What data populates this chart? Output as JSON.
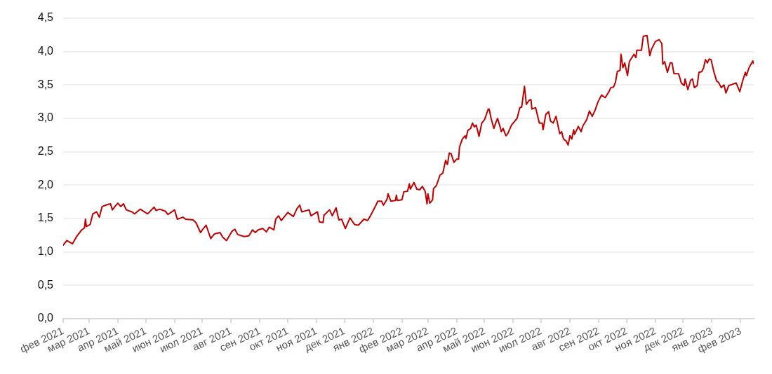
{
  "chart_data": {
    "type": "line",
    "x": [
      "2021-02-01",
      "2021-02-05",
      "2021-02-11",
      "2021-02-15",
      "2021-02-21",
      "2021-02-24",
      "2021-02-25",
      "2021-02-26",
      "2021-03-02",
      "2021-03-05",
      "2021-03-09",
      "2021-03-12",
      "2021-03-15",
      "2021-03-21",
      "2021-03-24",
      "2021-03-26",
      "2021-03-30",
      "2021-04-01",
      "2021-04-04",
      "2021-04-07",
      "2021-04-10",
      "2021-04-16",
      "2021-04-19",
      "2021-04-25",
      "2021-05-03",
      "2021-05-10",
      "2021-05-12",
      "2021-05-16",
      "2021-05-22",
      "2021-05-25",
      "2021-06-01",
      "2021-06-04",
      "2021-06-10",
      "2021-06-13",
      "2021-06-21",
      "2021-06-24",
      "2021-06-29",
      "2021-07-02",
      "2021-07-05",
      "2021-07-08",
      "2021-07-10",
      "2021-07-14",
      "2021-07-20",
      "2021-07-23",
      "2021-07-27",
      "2021-08-02",
      "2021-08-05",
      "2021-08-08",
      "2021-08-15",
      "2021-08-20",
      "2021-08-24",
      "2021-08-27",
      "2021-08-30",
      "2021-09-04",
      "2021-09-08",
      "2021-09-11",
      "2021-09-16",
      "2021-09-18",
      "2021-09-21",
      "2021-09-24",
      "2021-10-01",
      "2021-10-07",
      "2021-10-11",
      "2021-10-14",
      "2021-10-16",
      "2021-10-24",
      "2021-10-26",
      "2021-11-02",
      "2021-11-04",
      "2021-11-08",
      "2021-11-09",
      "2021-11-15",
      "2021-11-18",
      "2021-11-22",
      "2021-11-25",
      "2021-11-28",
      "2021-12-02",
      "2021-12-07",
      "2021-12-12",
      "2021-12-16",
      "2021-12-22",
      "2021-12-26",
      "2021-12-29",
      "2022-01-04",
      "2022-01-06",
      "2022-01-10",
      "2022-01-12",
      "2022-01-16",
      "2022-01-17",
      "2022-01-20",
      "2022-01-25",
      "2022-01-26",
      "2022-01-27",
      "2022-02-01",
      "2022-02-03",
      "2022-02-07",
      "2022-02-09",
      "2022-02-10",
      "2022-02-14",
      "2022-02-17",
      "2022-02-20",
      "2022-02-23",
      "2022-02-26",
      "2022-02-28",
      "2022-03-01",
      "2022-03-03",
      "2022-03-06",
      "2022-03-07",
      "2022-03-10",
      "2022-03-14",
      "2022-03-17",
      "2022-03-20",
      "2022-03-22",
      "2022-03-24",
      "2022-03-26",
      "2022-03-29",
      "2022-04-01",
      "2022-04-03",
      "2022-04-04",
      "2022-04-07",
      "2022-04-10",
      "2022-04-11",
      "2022-04-13",
      "2022-04-16",
      "2022-04-18",
      "2022-04-20",
      "2022-04-22",
      "2022-04-25",
      "2022-04-28",
      "2022-05-01",
      "2022-05-05",
      "2022-05-06",
      "2022-05-08",
      "2022-05-11",
      "2022-05-13",
      "2022-05-15",
      "2022-05-18",
      "2022-05-19",
      "2022-05-21",
      "2022-05-24",
      "2022-05-26",
      "2022-05-30",
      "2022-06-02",
      "2022-06-05",
      "2022-06-08",
      "2022-06-10",
      "2022-06-13",
      "2022-06-15",
      "2022-06-18",
      "2022-06-20",
      "2022-06-21",
      "2022-06-25",
      "2022-06-29",
      "2022-07-02",
      "2022-07-03",
      "2022-07-06",
      "2022-07-09",
      "2022-07-11",
      "2022-07-14",
      "2022-07-17",
      "2022-07-21",
      "2022-07-23",
      "2022-07-25",
      "2022-07-28",
      "2022-07-30",
      "2022-08-01",
      "2022-08-03",
      "2022-08-05",
      "2022-08-06",
      "2022-08-10",
      "2022-08-13",
      "2022-08-15",
      "2022-08-19",
      "2022-08-22",
      "2022-08-25",
      "2022-08-28",
      "2022-08-31",
      "2022-09-04",
      "2022-09-08",
      "2022-09-12",
      "2022-09-14",
      "2022-09-17",
      "2022-09-19",
      "2022-09-21",
      "2022-09-24",
      "2022-09-25",
      "2022-09-27",
      "2022-09-29",
      "2022-10-02",
      "2022-10-04",
      "2022-10-09",
      "2022-10-11",
      "2022-10-12",
      "2022-10-17",
      "2022-10-19",
      "2022-10-23",
      "2022-10-26",
      "2022-10-28",
      "2022-11-01",
      "2022-11-05",
      "2022-11-08",
      "2022-11-09",
      "2022-11-11",
      "2022-11-14",
      "2022-11-17",
      "2022-11-19",
      "2022-11-21",
      "2022-11-26",
      "2022-11-29",
      "2022-12-02",
      "2022-12-03",
      "2022-12-06",
      "2022-12-09",
      "2022-12-11",
      "2022-12-13",
      "2022-12-16",
      "2022-12-18",
      "2022-12-21",
      "2022-12-23",
      "2022-12-25",
      "2022-12-27",
      "2022-12-29",
      "2022-12-31",
      "2023-01-03",
      "2023-01-06",
      "2023-01-08",
      "2023-01-11",
      "2023-01-14",
      "2023-01-16",
      "2023-01-19",
      "2023-01-23",
      "2023-01-27",
      "2023-01-31",
      "2023-02-03",
      "2023-02-06",
      "2023-02-07",
      "2023-02-10",
      "2023-02-14",
      "2023-02-15"
    ],
    "series": [
      {
        "color": "#c00000",
        "values": [
          1.1,
          1.17,
          1.12,
          1.22,
          1.33,
          1.36,
          1.49,
          1.38,
          1.41,
          1.57,
          1.6,
          1.52,
          1.68,
          1.71,
          1.72,
          1.63,
          1.7,
          1.73,
          1.68,
          1.72,
          1.63,
          1.6,
          1.57,
          1.64,
          1.57,
          1.67,
          1.62,
          1.64,
          1.61,
          1.56,
          1.63,
          1.49,
          1.52,
          1.49,
          1.48,
          1.44,
          1.29,
          1.35,
          1.4,
          1.28,
          1.2,
          1.27,
          1.29,
          1.22,
          1.17,
          1.31,
          1.34,
          1.26,
          1.23,
          1.24,
          1.33,
          1.29,
          1.33,
          1.35,
          1.3,
          1.37,
          1.33,
          1.49,
          1.54,
          1.47,
          1.59,
          1.53,
          1.65,
          1.7,
          1.6,
          1.63,
          1.54,
          1.6,
          1.45,
          1.44,
          1.55,
          1.63,
          1.54,
          1.66,
          1.48,
          1.49,
          1.35,
          1.51,
          1.41,
          1.4,
          1.49,
          1.47,
          1.54,
          1.7,
          1.76,
          1.76,
          1.7,
          1.79,
          1.87,
          1.76,
          1.77,
          1.85,
          1.77,
          1.78,
          1.9,
          1.91,
          2.02,
          1.94,
          2.04,
          1.94,
          1.93,
          1.98,
          1.91,
          1.72,
          1.87,
          1.73,
          1.78,
          1.95,
          1.99,
          2.15,
          2.18,
          2.37,
          2.31,
          2.48,
          2.47,
          2.34,
          2.39,
          2.39,
          2.57,
          2.69,
          2.74,
          2.7,
          2.82,
          2.85,
          2.93,
          2.87,
          2.9,
          2.73,
          2.93,
          2.98,
          3.14,
          3.14,
          3.0,
          2.85,
          2.93,
          3.0,
          2.86,
          2.8,
          2.85,
          2.74,
          2.77,
          2.9,
          2.95,
          3.0,
          3.16,
          3.17,
          3.48,
          3.21,
          3.27,
          3.28,
          3.14,
          3.16,
          2.93,
          2.93,
          2.83,
          3.06,
          3.1,
          2.96,
          2.93,
          3.03,
          2.77,
          2.8,
          2.69,
          2.66,
          2.6,
          2.74,
          2.69,
          2.83,
          2.76,
          2.88,
          2.8,
          2.89,
          2.98,
          3.11,
          3.03,
          3.12,
          3.24,
          3.35,
          3.31,
          3.4,
          3.46,
          3.47,
          3.54,
          3.7,
          3.72,
          3.96,
          3.76,
          3.83,
          3.64,
          3.85,
          3.96,
          3.91,
          4.02,
          4.02,
          4.23,
          4.24,
          3.94,
          4.04,
          4.15,
          4.18,
          4.12,
          3.81,
          3.85,
          3.69,
          3.83,
          3.83,
          3.67,
          3.67,
          3.53,
          3.49,
          3.59,
          3.43,
          3.57,
          3.59,
          3.46,
          3.49,
          3.69,
          3.7,
          3.76,
          3.88,
          3.83,
          3.89,
          3.88,
          3.7,
          3.56,
          3.54,
          3.46,
          3.5,
          3.38,
          3.49,
          3.51,
          3.53,
          3.4,
          3.56,
          3.69,
          3.64,
          3.76,
          3.86,
          3.82
        ]
      }
    ],
    "xlim": [
      "2021-02-01",
      "2023-02-15"
    ],
    "xticks": [
      {
        "value": "2021-02",
        "label": "фев 2021"
      },
      {
        "value": "2021-03",
        "label": "мар 2021"
      },
      {
        "value": "2021-04",
        "label": "апр 2021"
      },
      {
        "value": "2021-05",
        "label": "май 2021"
      },
      {
        "value": "2021-06",
        "label": "июн 2021"
      },
      {
        "value": "2021-07",
        "label": "июл 2021"
      },
      {
        "value": "2021-08",
        "label": "авг 2021"
      },
      {
        "value": "2021-09",
        "label": "сен 2021"
      },
      {
        "value": "2021-10",
        "label": "окт 2021"
      },
      {
        "value": "2021-11",
        "label": "ноя 2021"
      },
      {
        "value": "2021-12",
        "label": "дек 2021"
      },
      {
        "value": "2022-01",
        "label": "янв 2022"
      },
      {
        "value": "2022-02",
        "label": "фев 2022"
      },
      {
        "value": "2022-03",
        "label": "мар 2022"
      },
      {
        "value": "2022-04",
        "label": "апр 2022"
      },
      {
        "value": "2022-05",
        "label": "май 2022"
      },
      {
        "value": "2022-06",
        "label": "июн 2022"
      },
      {
        "value": "2022-07",
        "label": "июл 2022"
      },
      {
        "value": "2022-08",
        "label": "авг 2022"
      },
      {
        "value": "2022-09",
        "label": "сен 2022"
      },
      {
        "value": "2022-10",
        "label": "окт 2022"
      },
      {
        "value": "2022-11",
        "label": "ноя 2022"
      },
      {
        "value": "2022-12",
        "label": "дек 2022"
      },
      {
        "value": "2023-01",
        "label": "янв 2023"
      },
      {
        "value": "2023-02",
        "label": "фев 2023"
      }
    ],
    "ylim": [
      0,
      4.5
    ],
    "yticks": [
      {
        "value": 0,
        "label": "0,0"
      },
      {
        "value": 0.5,
        "label": "0,5"
      },
      {
        "value": 1,
        "label": "1,0"
      },
      {
        "value": 1.5,
        "label": "1,5"
      },
      {
        "value": 2,
        "label": "2,0"
      },
      {
        "value": 2.5,
        "label": "2,5"
      },
      {
        "value": 3,
        "label": "3,0"
      },
      {
        "value": 3.5,
        "label": "3,5"
      },
      {
        "value": 4,
        "label": "4,0"
      },
      {
        "value": 4.5,
        "label": "4,5"
      }
    ],
    "grid": "y",
    "legend": false,
    "marker": "none",
    "line_style": "solid"
  }
}
